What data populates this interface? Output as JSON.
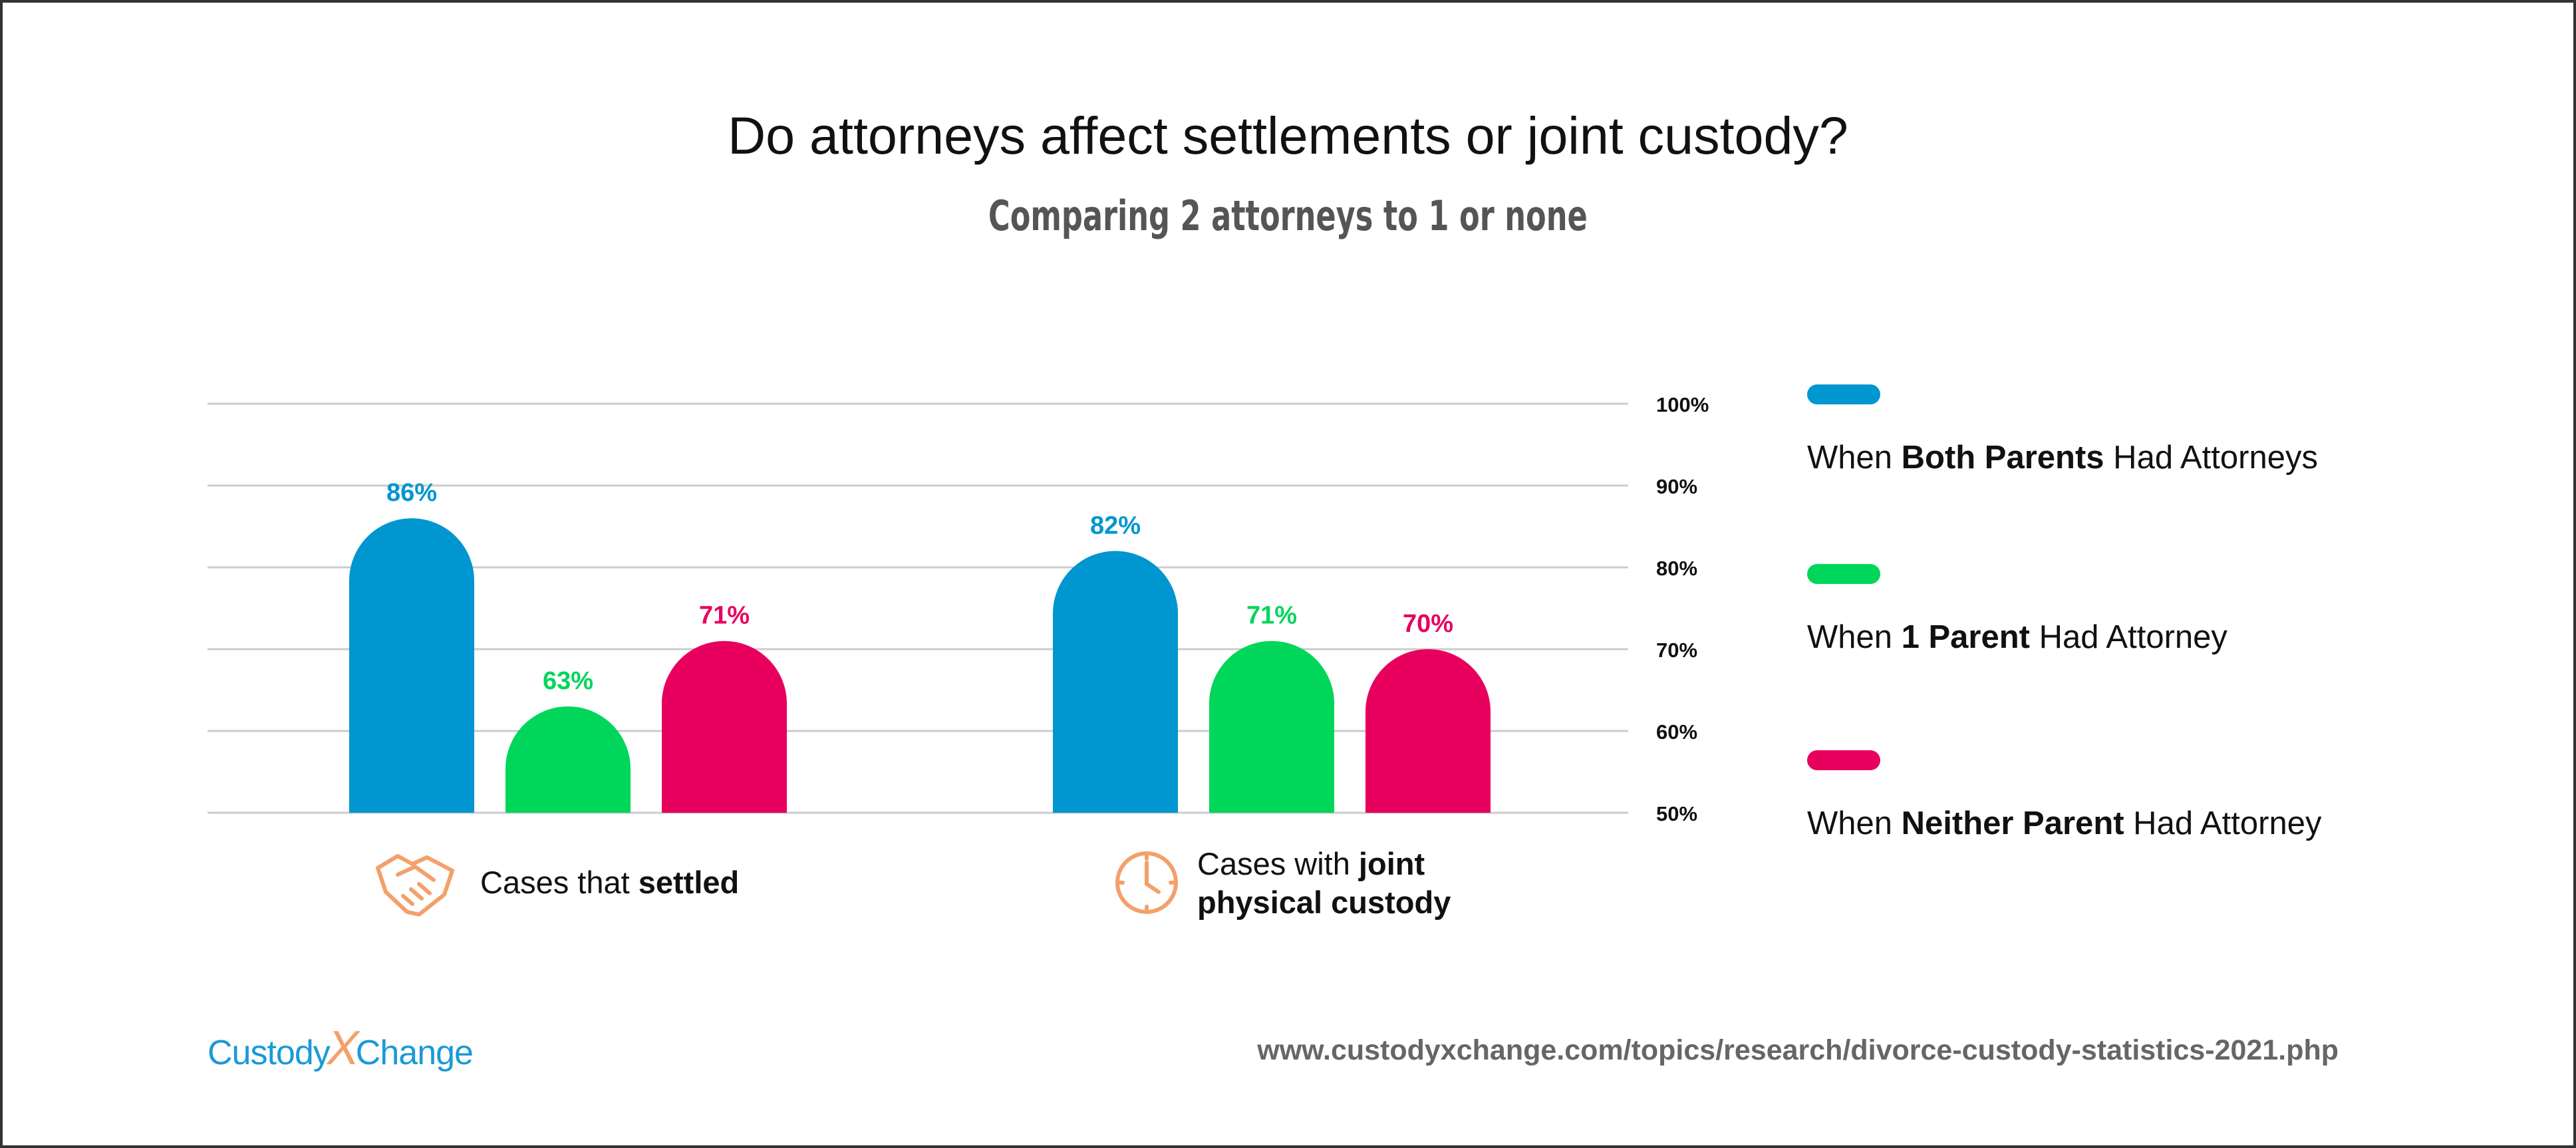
{
  "chart_data": {
    "type": "bar",
    "title": "Do attorneys affect settlements or joint custody?",
    "subtitle": "Comparing 2 attorneys to 1 or none",
    "ylim": [
      50,
      100
    ],
    "yticks": [
      50,
      60,
      70,
      80,
      90,
      100
    ],
    "ytick_labels": [
      "50%",
      "60%",
      "70%",
      "80%",
      "90%",
      "100%"
    ],
    "ytick_side": "right",
    "grid": true,
    "categories": [
      {
        "pre": "Cases that ",
        "bold": "settled",
        "pre2": "",
        "bold2": "",
        "icon": "handshake-icon"
      },
      {
        "pre": "Cases with ",
        "bold": "joint",
        "pre2": "",
        "bold2": "physical custody",
        "icon": "clock-icon"
      }
    ],
    "series": [
      {
        "values": [
          86,
          82
        ],
        "labels": [
          "86%",
          "82%"
        ],
        "color": "#0096cf"
      },
      {
        "values": [
          63,
          71
        ],
        "labels": [
          "63%",
          "71%"
        ],
        "color": "#00d65a"
      },
      {
        "values": [
          71,
          70
        ],
        "labels": [
          "71%",
          "70%"
        ],
        "color": "#e8005e"
      }
    ],
    "legend": {
      "placement": "right",
      "entries": [
        {
          "pre": "When ",
          "bold": "Both Parents",
          "post": " Had Attorneys",
          "color": "#0096cf"
        },
        {
          "pre": "When ",
          "bold": "1 Parent",
          "post": " Had Attorney",
          "color": "#00d65a"
        },
        {
          "pre": "When ",
          "bold": "Neither Parent",
          "post": " Had Attorney",
          "color": "#e8005e"
        }
      ]
    }
  },
  "branding": {
    "logo_left": "Custody",
    "logo_x": "X",
    "logo_right": "Change",
    "url": "www.custodyxchange.com/topics/research/divorce-custody-statistics-2021.php"
  },
  "colors": {
    "icon": "#f4a06a",
    "grid": "#cccccc"
  }
}
